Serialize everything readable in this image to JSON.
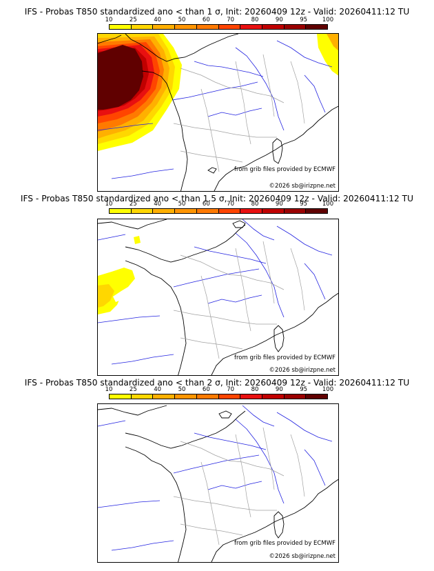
{
  "panels": [
    {
      "title": "IFS - Probas T850  standardized ano < than 1 σ, Init: 20260409 12z - Valid: 20260411:12 TU",
      "credit_source": "from grib files provided by ECMWF",
      "credit_copyright": "©2026 sb@irizpne.net"
    },
    {
      "title": "IFS - Probas T850  standardized ano < than 1.5 σ, Init: 20260409 12z - Valid: 20260411:12 TU",
      "credit_source": "from grib files provided by ECMWF",
      "credit_copyright": "©2026 sb@irizpne.net"
    },
    {
      "title": "IFS - Probas T850  standardized ano < than 2 σ, Init: 20260409 12z - Valid: 20260411:12 TU",
      "credit_source": "from grib files provided by ECMWF",
      "credit_copyright": "©2026 sb@irizpne.net"
    }
  ],
  "legend": {
    "ticks": [
      "10",
      "25",
      "40",
      "50",
      "60",
      "70",
      "80",
      "90",
      "95",
      "100"
    ],
    "colors": [
      "#ffff00",
      "#ffd700",
      "#ffb000",
      "#ff9500",
      "#ff7a00",
      "#ff4500",
      "#e81010",
      "#c00000",
      "#9a0000",
      "#600000"
    ]
  },
  "map_colors": {
    "coast": "#000000",
    "rivers": "#2020e0",
    "borders": "#a0a0a0"
  }
}
